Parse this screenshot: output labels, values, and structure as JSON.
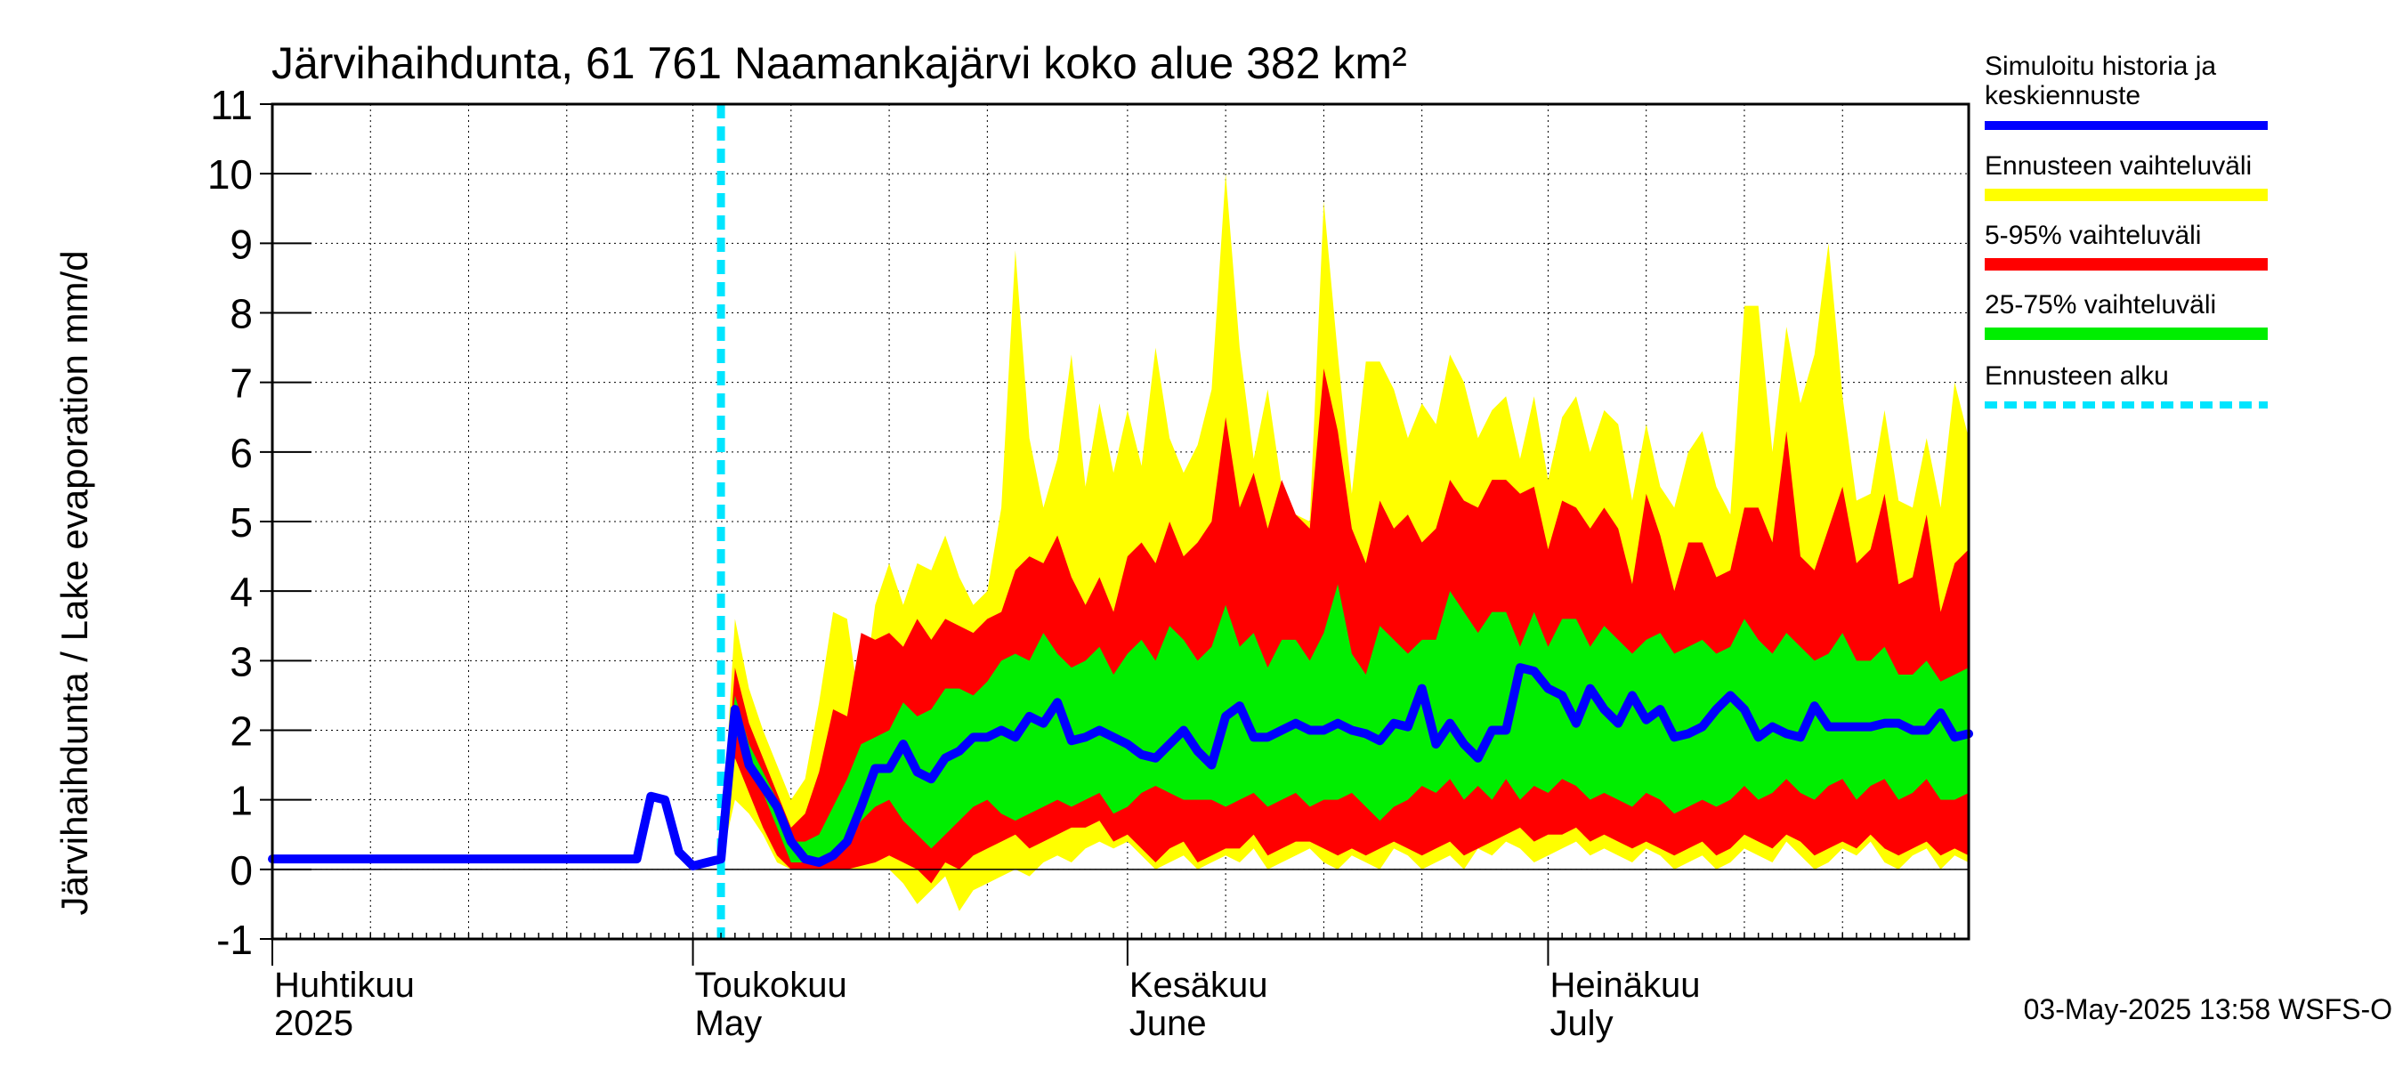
{
  "chart_data": {
    "type": "area",
    "title": "Järvihaihdunta, 61 761 Naamankajärvi koko alue 382 km²",
    "ylabel": "Järvihaihdunta / Lake evaporation   mm/d",
    "ylim": [
      -1,
      11
    ],
    "yticks": [
      -1,
      0,
      1,
      2,
      3,
      4,
      5,
      6,
      7,
      8,
      9,
      10,
      11
    ],
    "xlim": [
      "2025-04-01",
      "2025-07-31"
    ],
    "grid": true,
    "month_labels": [
      {
        "date": "2025-04-01",
        "line1": "Huhtikuu",
        "line2": "2025"
      },
      {
        "date": "2025-05-01",
        "line1": "Toukokuu",
        "line2": "May"
      },
      {
        "date": "2025-06-01",
        "line1": "Kesäkuu",
        "line2": "June"
      },
      {
        "date": "2025-07-01",
        "line1": "Heinäkuu",
        "line2": "July"
      }
    ],
    "forecast_start": "2025-05-03",
    "footer": "03-May-2025 13:58 WSFS-O",
    "legend": {
      "placement": "right",
      "entries": [
        {
          "label": "Simuloitu historia ja keskiennuste",
          "line1": "Simuloitu historia ja",
          "line2": "keskiennuste",
          "color": "#0000ff",
          "style": "solid"
        },
        {
          "label": "Ennusteen vaihteluväli",
          "color": "#ffff00",
          "style": "solid"
        },
        {
          "label": "5-95% vaihteluväli",
          "color": "#ff0000",
          "style": "solid"
        },
        {
          "label": "25-75% vaihteluväli",
          "color": "#00ee00",
          "style": "solid"
        },
        {
          "label": "Ennusteen alku",
          "color": "#00e5ff",
          "style": "dashed"
        }
      ]
    },
    "colors": {
      "median": "#0000ff",
      "full_range": "#ffff00",
      "p5_95": "#ff0000",
      "p25_75": "#00ee00",
      "forecast_start": "#00e5ff"
    },
    "history": {
      "x": [
        "2025-04-01",
        "2025-04-27",
        "2025-04-28",
        "2025-04-29",
        "2025-04-30",
        "2025-05-01",
        "2025-05-02",
        "2025-05-03"
      ],
      "y": [
        0.15,
        0.15,
        1.05,
        1.0,
        0.25,
        0.05,
        0.1,
        0.15
      ]
    },
    "forecast_x": [
      "2025-05-03",
      "2025-05-04",
      "2025-05-05",
      "2025-05-06",
      "2025-05-07",
      "2025-05-08",
      "2025-05-09",
      "2025-05-10",
      "2025-05-11",
      "2025-05-12",
      "2025-05-13",
      "2025-05-14",
      "2025-05-15",
      "2025-05-16",
      "2025-05-17",
      "2025-05-18",
      "2025-05-19",
      "2025-05-20",
      "2025-05-21",
      "2025-05-22",
      "2025-05-23",
      "2025-05-24",
      "2025-05-25",
      "2025-05-26",
      "2025-05-27",
      "2025-05-28",
      "2025-05-29",
      "2025-05-30",
      "2025-05-31",
      "2025-06-01",
      "2025-06-02",
      "2025-06-03",
      "2025-06-04",
      "2025-06-05",
      "2025-06-06",
      "2025-06-07",
      "2025-06-08",
      "2025-06-09",
      "2025-06-10",
      "2025-06-11",
      "2025-06-12",
      "2025-06-13",
      "2025-06-14",
      "2025-06-15",
      "2025-06-16",
      "2025-06-17",
      "2025-06-18",
      "2025-06-19",
      "2025-06-20",
      "2025-06-21",
      "2025-06-22",
      "2025-06-23",
      "2025-06-24",
      "2025-06-25",
      "2025-06-26",
      "2025-06-27",
      "2025-06-28",
      "2025-06-29",
      "2025-06-30",
      "2025-07-01",
      "2025-07-02",
      "2025-07-03",
      "2025-07-04",
      "2025-07-05",
      "2025-07-06",
      "2025-07-07",
      "2025-07-08",
      "2025-07-09",
      "2025-07-10",
      "2025-07-11",
      "2025-07-12",
      "2025-07-13",
      "2025-07-14",
      "2025-07-15",
      "2025-07-16",
      "2025-07-17",
      "2025-07-18",
      "2025-07-19",
      "2025-07-20",
      "2025-07-21",
      "2025-07-22",
      "2025-07-23",
      "2025-07-24",
      "2025-07-25",
      "2025-07-26",
      "2025-07-27",
      "2025-07-28",
      "2025-07-29",
      "2025-07-30",
      "2025-07-31"
    ],
    "series": [
      {
        "name": "Ennusteen vaihteluväli",
        "color": "#ffff00",
        "low": [
          0.1,
          1.0,
          0.8,
          0.5,
          0.1,
          0.0,
          0.0,
          0.0,
          0.0,
          0.0,
          0.0,
          0.0,
          0.0,
          -0.2,
          -0.5,
          -0.3,
          -0.1,
          -0.6,
          -0.3,
          -0.2,
          -0.1,
          0.0,
          -0.1,
          0.1,
          0.2,
          0.1,
          0.3,
          0.4,
          0.3,
          0.4,
          0.2,
          0.0,
          0.1,
          0.2,
          0.0,
          0.1,
          0.2,
          0.1,
          0.3,
          0.0,
          0.1,
          0.2,
          0.3,
          0.1,
          0.0,
          0.2,
          0.1,
          0.0,
          0.3,
          0.2,
          0.0,
          0.1,
          0.2,
          0.0,
          0.3,
          0.2,
          0.4,
          0.3,
          0.1,
          0.2,
          0.3,
          0.4,
          0.2,
          0.3,
          0.2,
          0.1,
          0.3,
          0.2,
          0.0,
          0.1,
          0.2,
          0.0,
          0.1,
          0.3,
          0.2,
          0.1,
          0.4,
          0.2,
          0.0,
          0.1,
          0.3,
          0.2,
          0.4,
          0.1,
          0.0,
          0.2,
          0.3,
          0.0,
          0.2,
          0.1
        ],
        "high": [
          0.2,
          3.6,
          2.6,
          2.0,
          1.5,
          1.0,
          1.3,
          2.4,
          3.7,
          3.6,
          2.2,
          3.8,
          4.4,
          3.8,
          4.4,
          4.3,
          4.8,
          4.2,
          3.8,
          4.0,
          5.2,
          8.9,
          6.2,
          5.2,
          5.9,
          7.4,
          5.5,
          6.7,
          5.7,
          6.6,
          5.8,
          7.5,
          6.2,
          5.7,
          6.1,
          6.9,
          10.0,
          7.5,
          5.9,
          6.9,
          5.5,
          5.1,
          5.0,
          9.6,
          7.4,
          5.4,
          7.3,
          7.3,
          6.9,
          6.2,
          6.7,
          6.4,
          7.4,
          7.0,
          6.2,
          6.6,
          6.8,
          5.9,
          6.8,
          5.6,
          6.5,
          6.8,
          6.0,
          6.6,
          6.4,
          5.3,
          6.4,
          5.5,
          5.2,
          6.0,
          6.3,
          5.5,
          5.1,
          8.1,
          8.1,
          6.0,
          7.8,
          6.7,
          7.4,
          9.0,
          6.8,
          5.3,
          5.4,
          6.6,
          5.3,
          5.2,
          6.2,
          5.2,
          7.0,
          6.2
        ]
      },
      {
        "name": "5-95% vaihteluväli",
        "color": "#ff0000",
        "low": [
          0.15,
          1.6,
          1.1,
          0.6,
          0.2,
          0.0,
          0.0,
          0.0,
          0.0,
          0.0,
          0.05,
          0.1,
          0.2,
          0.1,
          0.0,
          -0.2,
          0.1,
          0.0,
          0.2,
          0.3,
          0.4,
          0.5,
          0.3,
          0.4,
          0.5,
          0.6,
          0.6,
          0.7,
          0.4,
          0.5,
          0.3,
          0.1,
          0.3,
          0.4,
          0.1,
          0.2,
          0.3,
          0.3,
          0.5,
          0.2,
          0.3,
          0.4,
          0.4,
          0.3,
          0.2,
          0.3,
          0.2,
          0.3,
          0.4,
          0.3,
          0.2,
          0.3,
          0.4,
          0.2,
          0.3,
          0.4,
          0.5,
          0.6,
          0.4,
          0.5,
          0.5,
          0.6,
          0.4,
          0.5,
          0.4,
          0.3,
          0.4,
          0.3,
          0.2,
          0.3,
          0.4,
          0.2,
          0.3,
          0.5,
          0.4,
          0.3,
          0.5,
          0.4,
          0.2,
          0.3,
          0.4,
          0.3,
          0.5,
          0.3,
          0.2,
          0.3,
          0.4,
          0.2,
          0.3,
          0.2
        ],
        "high": [
          0.18,
          2.9,
          2.1,
          1.6,
          1.1,
          0.6,
          0.8,
          1.4,
          2.3,
          2.2,
          3.4,
          3.3,
          3.4,
          3.2,
          3.6,
          3.3,
          3.6,
          3.5,
          3.4,
          3.6,
          3.7,
          4.3,
          4.5,
          4.4,
          4.8,
          4.2,
          3.8,
          4.2,
          3.7,
          4.5,
          4.7,
          4.4,
          5.0,
          4.5,
          4.7,
          5.0,
          6.5,
          5.2,
          5.7,
          4.9,
          5.6,
          5.1,
          4.9,
          7.2,
          6.3,
          4.9,
          4.4,
          5.3,
          4.9,
          5.1,
          4.7,
          4.9,
          5.6,
          5.3,
          5.2,
          5.6,
          5.6,
          5.4,
          5.5,
          4.6,
          5.3,
          5.2,
          4.9,
          5.2,
          4.9,
          4.1,
          5.4,
          4.8,
          4.0,
          4.7,
          4.7,
          4.2,
          4.3,
          5.2,
          5.2,
          4.7,
          6.3,
          4.5,
          4.3,
          4.9,
          5.5,
          4.4,
          4.6,
          5.4,
          4.1,
          4.2,
          5.1,
          3.7,
          4.4,
          4.6
        ]
      },
      {
        "name": "25-75% vaihteluväli",
        "color": "#00ee00",
        "low": [
          0.15,
          2.0,
          1.4,
          1.1,
          0.6,
          0.1,
          0.1,
          0.1,
          0.2,
          0.4,
          0.7,
          0.9,
          1.0,
          0.7,
          0.5,
          0.3,
          0.5,
          0.7,
          0.9,
          1.0,
          0.8,
          0.7,
          0.8,
          0.9,
          1.0,
          0.9,
          1.0,
          1.1,
          0.8,
          0.9,
          1.1,
          1.2,
          1.1,
          1.0,
          1.0,
          1.0,
          0.9,
          1.0,
          1.1,
          0.9,
          1.0,
          1.1,
          0.9,
          1.0,
          1.0,
          1.1,
          0.9,
          0.7,
          0.9,
          1.0,
          1.2,
          1.1,
          1.3,
          1.0,
          1.2,
          1.0,
          1.3,
          1.0,
          1.2,
          1.1,
          1.3,
          1.2,
          1.0,
          1.1,
          1.0,
          0.9,
          1.1,
          1.0,
          0.8,
          0.9,
          1.0,
          0.9,
          1.0,
          1.2,
          1.0,
          1.1,
          1.3,
          1.1,
          1.0,
          1.2,
          1.3,
          1.0,
          1.2,
          1.3,
          1.0,
          1.1,
          1.3,
          1.0,
          1.0,
          1.1
        ],
        "high": [
          0.17,
          2.5,
          1.8,
          1.4,
          1.0,
          0.4,
          0.4,
          0.5,
          0.9,
          1.3,
          1.8,
          1.9,
          2.0,
          2.4,
          2.2,
          2.3,
          2.6,
          2.6,
          2.5,
          2.7,
          3.0,
          3.1,
          3.0,
          3.4,
          3.1,
          2.9,
          3.0,
          3.2,
          2.8,
          3.1,
          3.3,
          3.0,
          3.5,
          3.3,
          3.0,
          3.2,
          3.8,
          3.2,
          3.4,
          2.9,
          3.3,
          3.3,
          3.0,
          3.4,
          4.1,
          3.1,
          2.8,
          3.5,
          3.3,
          3.1,
          3.3,
          3.3,
          4.0,
          3.7,
          3.4,
          3.7,
          3.7,
          3.2,
          3.7,
          3.2,
          3.6,
          3.6,
          3.2,
          3.5,
          3.3,
          3.1,
          3.3,
          3.4,
          3.1,
          3.2,
          3.3,
          3.1,
          3.2,
          3.6,
          3.3,
          3.1,
          3.4,
          3.2,
          3.0,
          3.1,
          3.4,
          3.0,
          3.0,
          3.2,
          2.8,
          2.8,
          3.0,
          2.7,
          2.8,
          2.9
        ]
      },
      {
        "name": "keskiennuste",
        "color": "#0000ff",
        "y": [
          0.15,
          2.3,
          1.5,
          1.2,
          0.9,
          0.4,
          0.15,
          0.1,
          0.2,
          0.4,
          0.9,
          1.45,
          1.45,
          1.8,
          1.4,
          1.3,
          1.6,
          1.7,
          1.9,
          1.9,
          2.0,
          1.9,
          2.2,
          2.1,
          2.4,
          1.85,
          1.9,
          2.0,
          1.9,
          1.8,
          1.65,
          1.6,
          1.8,
          2.0,
          1.7,
          1.5,
          2.2,
          2.35,
          1.9,
          1.9,
          2.0,
          2.1,
          2.0,
          2.0,
          2.1,
          2.0,
          1.95,
          1.85,
          2.1,
          2.05,
          2.6,
          1.8,
          2.1,
          1.8,
          1.6,
          2.0,
          2.0,
          2.9,
          2.85,
          2.6,
          2.5,
          2.1,
          2.6,
          2.3,
          2.1,
          2.5,
          2.15,
          2.3,
          1.9,
          1.95,
          2.05,
          2.3,
          2.5,
          2.3,
          1.9,
          2.05,
          1.95,
          1.9,
          2.35,
          2.05,
          2.05,
          2.05,
          2.05,
          2.1,
          2.1,
          2.0,
          2.0,
          2.25,
          1.9,
          1.95
        ]
      }
    ]
  }
}
